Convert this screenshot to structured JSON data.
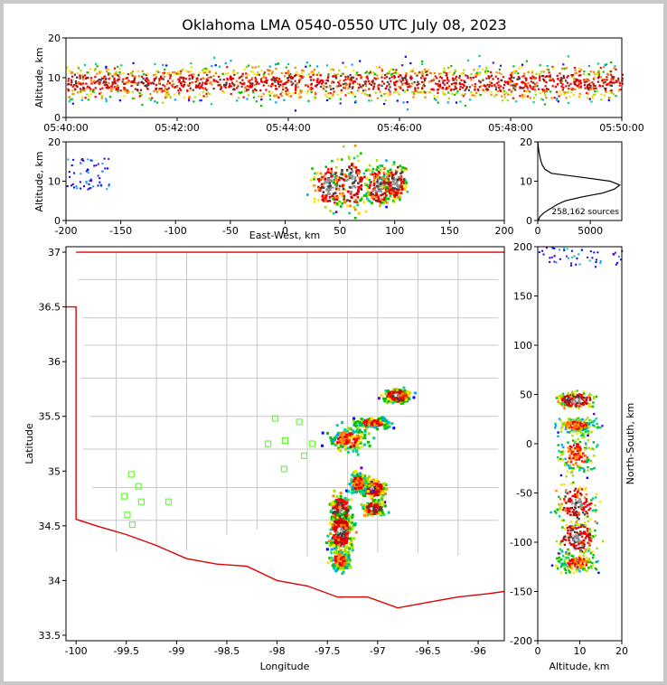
{
  "chart_data": [
    {
      "id": "time_altitude",
      "type": "heatmap",
      "title": "Oklahoma LMA 0540-0550 UTC July 08, 2023",
      "xlabel": "",
      "ylabel": "Altitude, km",
      "x_ticks": [
        "05:40:00",
        "05:42:00",
        "05:44:00",
        "05:46:00",
        "05:48:00",
        "05:50:00"
      ],
      "y_ticks": [
        0,
        10,
        20
      ],
      "xlim_minutes": [
        0,
        10
      ],
      "ylim": [
        0,
        20
      ]
    },
    {
      "id": "ew_altitude",
      "type": "heatmap",
      "xlabel": "East-West, km",
      "ylabel": "Altitude, km",
      "x_ticks": [
        -200,
        -150,
        -100,
        -50,
        0,
        50,
        100,
        150,
        200
      ],
      "y_ticks": [
        0,
        10,
        20
      ],
      "xlim": [
        -200,
        200
      ],
      "ylim": [
        0,
        20
      ],
      "clusters": [
        {
          "x": 40,
          "y": 9,
          "rx": 15,
          "ry": 6
        },
        {
          "x": 60,
          "y": 10,
          "rx": 15,
          "ry": 7
        },
        {
          "x": 85,
          "y": 9,
          "rx": 12,
          "ry": 5
        },
        {
          "x": 100,
          "y": 10,
          "rx": 10,
          "ry": 5
        }
      ]
    },
    {
      "id": "altitude_histogram",
      "type": "line",
      "annotation": "258,162 sources",
      "x_ticks": [
        0,
        5000
      ],
      "y_ticks": [
        0,
        10,
        20
      ],
      "xlim": [
        0,
        8000
      ],
      "ylim": [
        0,
        20
      ],
      "profile": [
        {
          "alt": 0,
          "count": 50
        },
        {
          "alt": 1,
          "count": 200
        },
        {
          "alt": 2,
          "count": 600
        },
        {
          "alt": 3,
          "count": 1200
        },
        {
          "alt": 4,
          "count": 1800
        },
        {
          "alt": 5,
          "count": 2600
        },
        {
          "alt": 6,
          "count": 4200
        },
        {
          "alt": 7,
          "count": 6200
        },
        {
          "alt": 8,
          "count": 7300
        },
        {
          "alt": 9,
          "count": 7800
        },
        {
          "alt": 10,
          "count": 6900
        },
        {
          "alt": 11,
          "count": 4200
        },
        {
          "alt": 12,
          "count": 1300
        },
        {
          "alt": 13,
          "count": 700
        },
        {
          "alt": 14,
          "count": 450
        },
        {
          "alt": 15,
          "count": 320
        },
        {
          "alt": 16,
          "count": 220
        },
        {
          "alt": 17,
          "count": 150
        },
        {
          "alt": 18,
          "count": 90
        },
        {
          "alt": 19,
          "count": 40
        },
        {
          "alt": 20,
          "count": 10
        }
      ]
    },
    {
      "id": "plan_view",
      "type": "scatter",
      "xlabel": "Longitude",
      "ylabel": "Latitude",
      "x_ticks": [
        -100.0,
        -99.5,
        -99.0,
        -98.5,
        -98.0,
        -97.5,
        -97.0,
        -96.5,
        -96.0
      ],
      "y_ticks": [
        33.5,
        34.0,
        34.5,
        35.0,
        35.5,
        36.0,
        36.5,
        37.0
      ],
      "xlim": [
        -100.1,
        -95.74
      ],
      "ylim": [
        33.45,
        37.05
      ],
      "stations": [
        {
          "lon": -99.45,
          "lat": 34.97
        },
        {
          "lon": -99.38,
          "lat": 34.86
        },
        {
          "lon": -99.52,
          "lat": 34.77
        },
        {
          "lon": -99.35,
          "lat": 34.72
        },
        {
          "lon": -99.08,
          "lat": 34.72
        },
        {
          "lon": -99.49,
          "lat": 34.6
        },
        {
          "lon": -99.44,
          "lat": 34.51
        },
        {
          "lon": -98.02,
          "lat": 35.48
        },
        {
          "lon": -97.78,
          "lat": 35.45
        },
        {
          "lon": -98.09,
          "lat": 35.25
        },
        {
          "lon": -97.92,
          "lat": 35.28
        },
        {
          "lon": -97.65,
          "lat": 35.25
        },
        {
          "lon": -97.73,
          "lat": 35.14
        },
        {
          "lon": -97.93,
          "lat": 35.02
        }
      ],
      "storm_cells": [
        {
          "lon": -96.82,
          "lat": 35.7,
          "rlon": 0.12,
          "rlat": 0.06,
          "peak": true
        },
        {
          "lon": -97.05,
          "lat": 35.45,
          "rlon": 0.2,
          "rlat": 0.05,
          "peak": false
        },
        {
          "lon": -97.3,
          "lat": 35.3,
          "rlon": 0.2,
          "rlat": 0.12,
          "peak": false
        },
        {
          "lon": -97.05,
          "lat": 34.85,
          "rlon": 0.12,
          "rlat": 0.08,
          "peak": true
        },
        {
          "lon": -97.05,
          "lat": 34.67,
          "rlon": 0.1,
          "rlat": 0.06,
          "peak": true
        },
        {
          "lon": -97.38,
          "lat": 34.63,
          "rlon": 0.1,
          "rlat": 0.18,
          "peak": true
        },
        {
          "lon": -97.38,
          "lat": 34.45,
          "rlon": 0.12,
          "rlat": 0.15,
          "peak": true
        },
        {
          "lon": -97.38,
          "lat": 34.2,
          "rlon": 0.1,
          "rlat": 0.1,
          "peak": false
        },
        {
          "lon": -97.2,
          "lat": 34.9,
          "rlon": 0.1,
          "rlat": 0.1,
          "peak": false
        }
      ]
    },
    {
      "id": "altitude_ns",
      "type": "heatmap",
      "xlabel": "Altitude, km",
      "ylabel": "North-South, km",
      "x_ticks": [
        0,
        10,
        20
      ],
      "y_ticks": [
        -200,
        -150,
        -100,
        -50,
        0,
        50,
        100,
        150,
        200
      ],
      "xlim": [
        0,
        20
      ],
      "ylim": [
        -200,
        200
      ]
    }
  ]
}
